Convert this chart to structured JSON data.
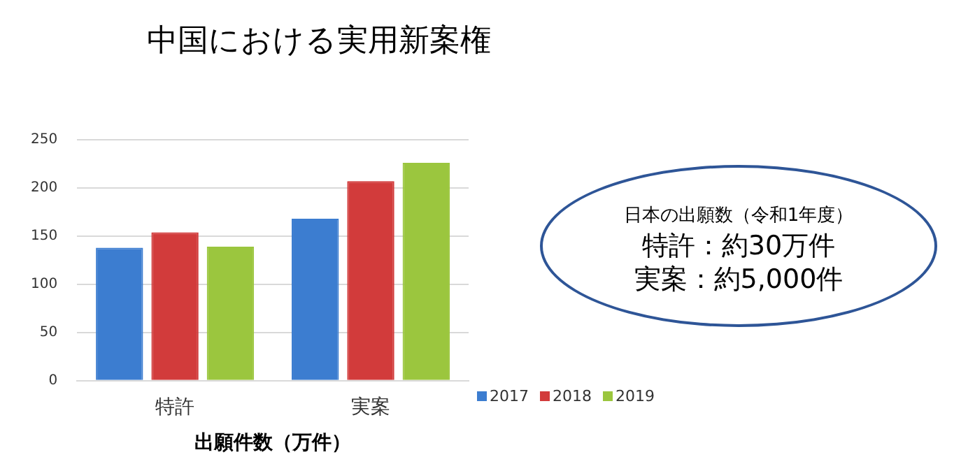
{
  "chart_data": {
    "type": "bar",
    "title": "中国における実用新案権",
    "xlabel": "出願件数（万件）",
    "categories": [
      "特許",
      "実案"
    ],
    "series": [
      {
        "name": "2017",
        "color": "#3c7dd0",
        "values": [
          138,
          168
        ]
      },
      {
        "name": "2018",
        "color": "#d23b3b",
        "values": [
          154,
          207
        ]
      },
      {
        "name": "2019",
        "color": "#9bc63e",
        "values": [
          139,
          226
        ]
      }
    ],
    "ylim": [
      0,
      250
    ],
    "yticks": [
      0,
      50,
      100,
      150,
      200,
      250
    ],
    "grid": "y",
    "legend": "bottom right",
    "annotations": [
      "日本の出願数（令和1年度）",
      "特許：約30万件",
      "実案：約5,000件"
    ]
  }
}
